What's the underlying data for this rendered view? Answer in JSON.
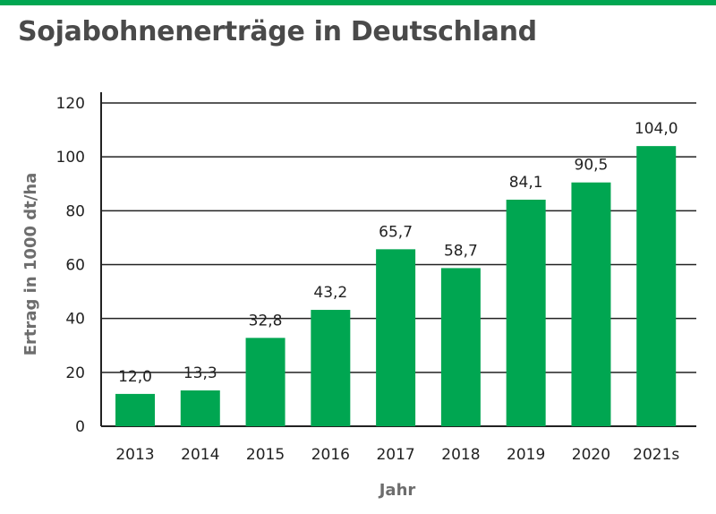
{
  "title": "Sojabohnenerträge in Deutschland",
  "colors": {
    "bar": "#00a651",
    "stripe": "#00a651",
    "grid": "#222222"
  },
  "chart_data": {
    "type": "bar",
    "title": "Sojabohnenerträge in Deutschland",
    "xlabel": "Jahr",
    "ylabel": "Ertrag in 1000 dt/ha",
    "categories": [
      "2013",
      "2014",
      "2015",
      "2016",
      "2017",
      "2018",
      "2019",
      "2020",
      "2021s"
    ],
    "values": [
      12.0,
      13.3,
      32.8,
      43.2,
      65.7,
      58.7,
      84.1,
      90.5,
      104.0
    ],
    "value_labels": [
      "12,0",
      "13,3",
      "32,8",
      "43,2",
      "65,7",
      "58,7",
      "84,1",
      "90,5",
      "104,0"
    ],
    "yticks": [
      "0",
      "20",
      "40",
      "60",
      "80",
      "100",
      "120"
    ],
    "ylim": [
      0,
      120
    ],
    "grid": true,
    "legend": "none"
  }
}
